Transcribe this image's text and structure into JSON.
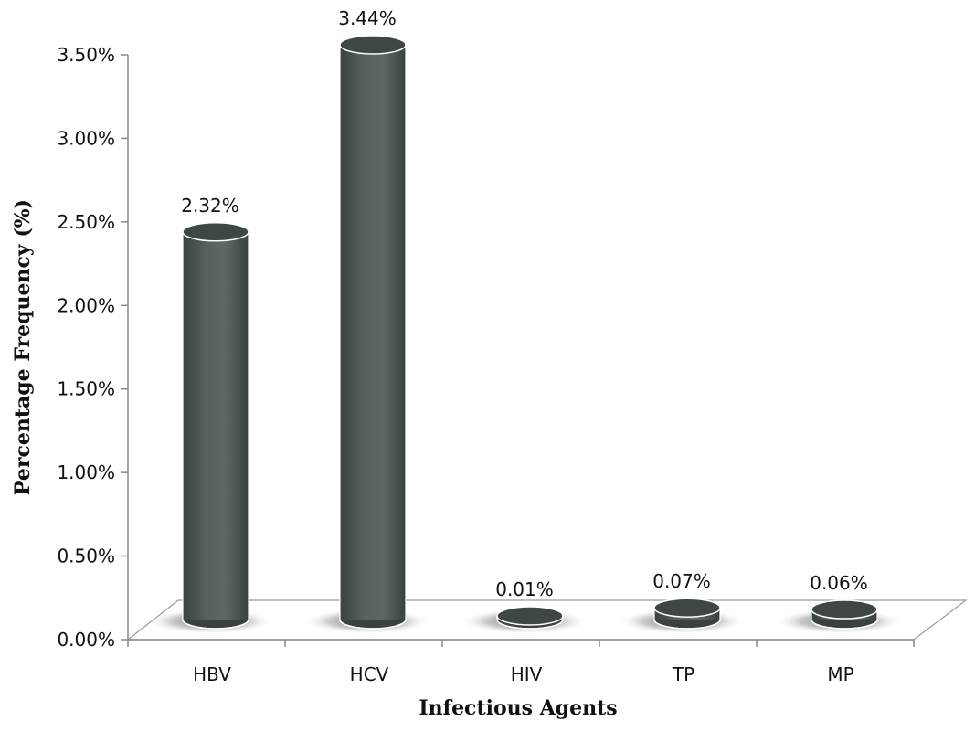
{
  "chart_data": {
    "type": "bar",
    "title": "",
    "xlabel": "Infectious Agents",
    "ylabel": "Percentage Frequency (%)",
    "categories": [
      "HBV",
      "HCV",
      "HIV",
      "TP",
      "MP"
    ],
    "values": [
      2.32,
      3.44,
      0.01,
      0.07,
      0.06
    ],
    "data_labels": [
      "2.32%",
      "3.44%",
      "0.01%",
      "0.07%",
      "0.06%"
    ],
    "ylim": [
      0,
      3.5
    ],
    "yticks": [
      0,
      0.5,
      1.0,
      1.5,
      2.0,
      2.5,
      3.0,
      3.5
    ],
    "ytick_labels": [
      "0.00%",
      "0.50%",
      "1.00%",
      "1.50%",
      "2.00%",
      "2.50%",
      "3.00%",
      "3.50%"
    ],
    "grid": false,
    "legend": "none",
    "colors": {
      "bar_body": "#4f5857",
      "bar_highlight": "#6b7573",
      "bar_dark": "#3a4140",
      "bar_top": "#3f4746",
      "outline": "#ffffff",
      "axis": "#888888",
      "shadow": "#6d6d6d"
    }
  }
}
